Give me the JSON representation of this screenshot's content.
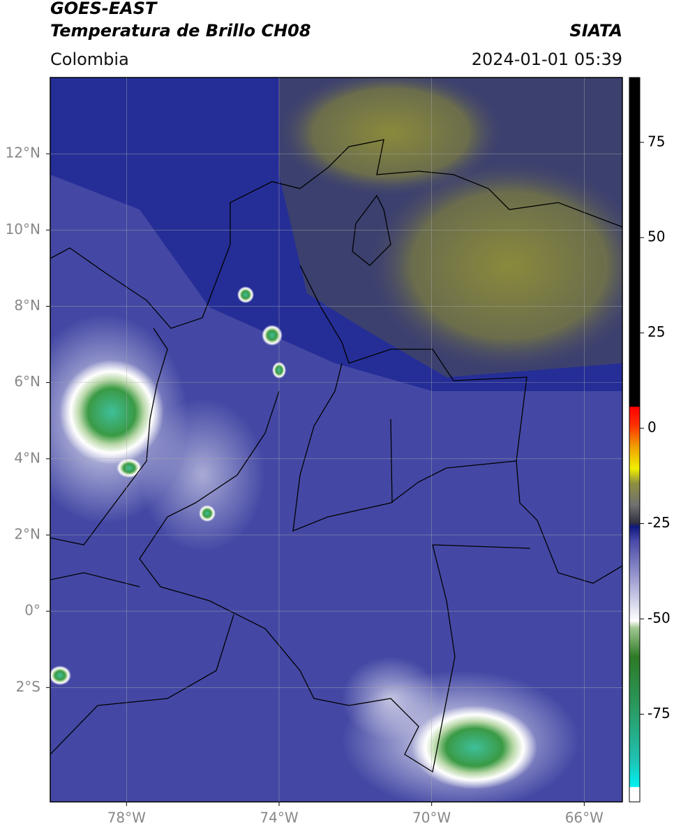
{
  "header": {
    "satellite": "GOES-EAST",
    "product": "Temperatura de Brillo CH08",
    "region": "Colombia",
    "source": "SIATA",
    "timestamp": "2024-01-01 05:39"
  },
  "map": {
    "xlim": [
      -80,
      -65
    ],
    "ylim": [
      -5,
      14
    ],
    "grid": true,
    "xticks": [
      {
        "value": -78,
        "label": "78°W"
      },
      {
        "value": -74,
        "label": "74°W"
      },
      {
        "value": -70,
        "label": "70°W"
      },
      {
        "value": -66,
        "label": "66°W"
      }
    ],
    "yticks": [
      {
        "value": 12,
        "label": "12°N"
      },
      {
        "value": 10,
        "label": "10°N"
      },
      {
        "value": 8,
        "label": "8°N"
      },
      {
        "value": 6,
        "label": "6°N"
      },
      {
        "value": 4,
        "label": "4°N"
      },
      {
        "value": 2,
        "label": "2°N"
      },
      {
        "value": 0,
        "label": "0°"
      },
      {
        "value": -2,
        "label": "2°S"
      }
    ]
  },
  "colorbar": {
    "lim": [
      -98,
      92
    ],
    "ticks": [
      -75,
      -50,
      -25,
      0,
      25,
      50,
      75
    ]
  }
}
